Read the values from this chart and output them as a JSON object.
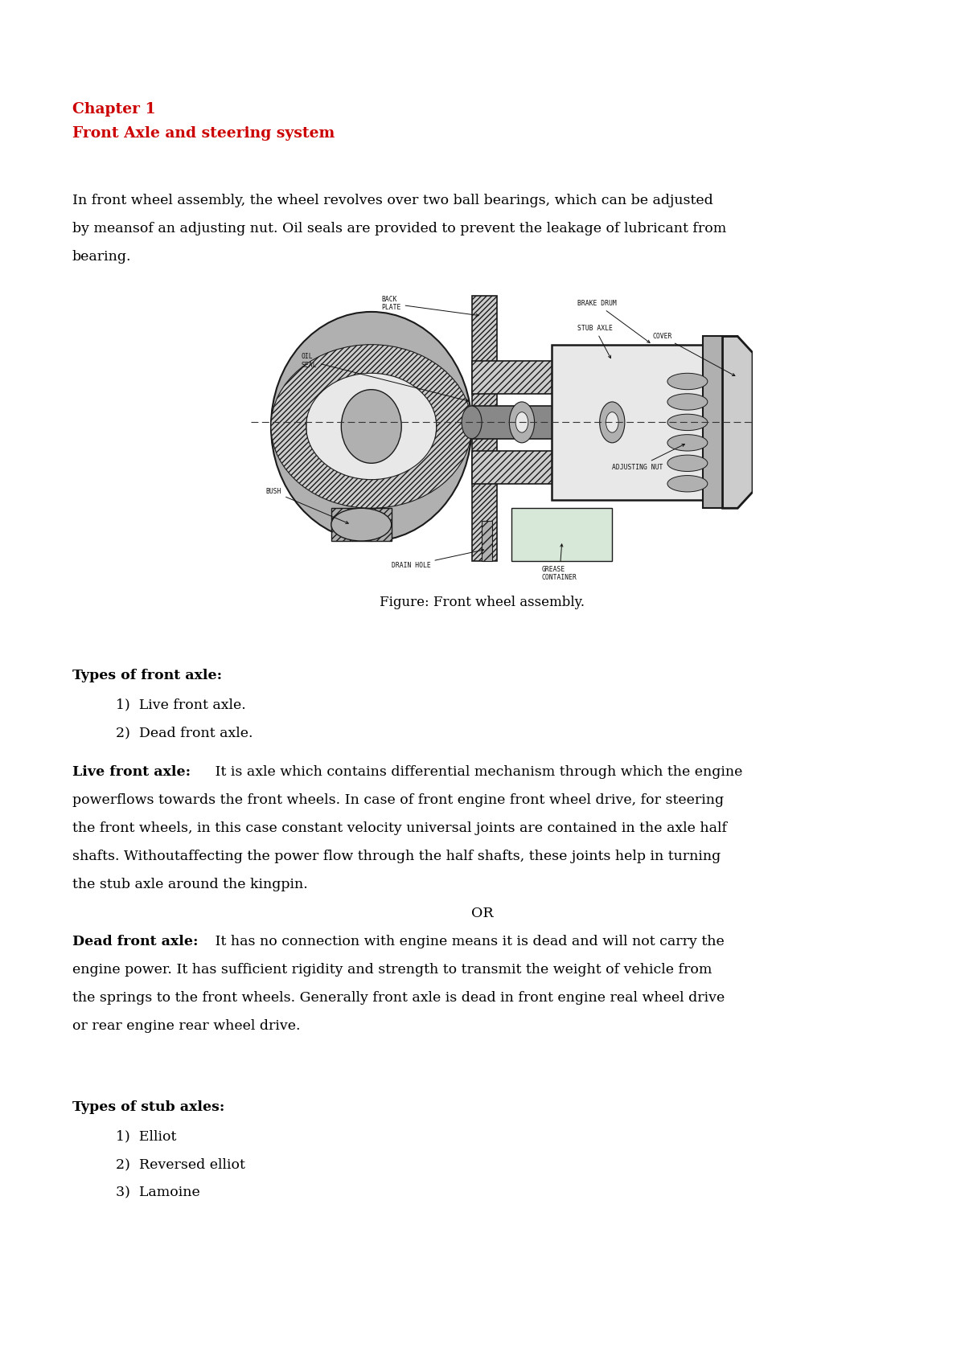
{
  "bg_color": "#ffffff",
  "chapter_title": "Chapter 1",
  "chapter_subtitle": "Front Axle and steering system",
  "chapter_color": "#cc0000",
  "intro_line1": "In front wheel assembly, the wheel revolves over two ball bearings, which can be adjusted",
  "intro_line2": "by meansof an adjusting nut. Oil seals are provided to prevent the leakage of lubricant from",
  "intro_line3": "bearing.",
  "figure_caption": "Figure: Front wheel assembly.",
  "types_front_axle_heading": "Types of front axle:",
  "types_front_axle_items": [
    "Live front axle.",
    "Dead front axle."
  ],
  "live_bold": "Live front axle:",
  "live_rest_line1": " It is axle which contains differential mechanism through which the engine",
  "live_rest_line2": "powerflows towards the front wheels. In case of front engine front wheel drive, for steering",
  "live_rest_line3": "the front wheels, in this case constant velocity universal joints are contained in the axle half",
  "live_rest_line4": "shafts. Withoutaffecting the power flow through the half shafts, these joints help in turning",
  "live_rest_line5": "the stub axle around the kingpin.",
  "or_text": "OR",
  "dead_bold": "Dead front axle:",
  "dead_rest_line1": " It has no connection with engine means it is dead and will not carry the",
  "dead_rest_line2": "engine power. It has sufficient rigidity and strength to transmit the weight of vehicle from",
  "dead_rest_line3": "the springs to the front wheels. Generally front axle is dead in front engine real wheel drive",
  "dead_rest_line4": "or rear engine rear wheel drive.",
  "types_stub_axles_heading": "Types of stub axles:",
  "types_stub_axles_items": [
    "Elliot",
    "Reversed elliot",
    "Lamoine"
  ],
  "fs_body": 12.5,
  "fs_heading": 12.5,
  "fs_chapter": 13.5,
  "ml": 0.075
}
